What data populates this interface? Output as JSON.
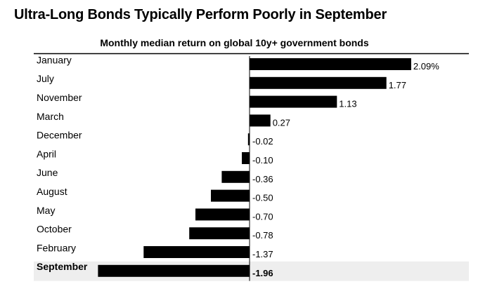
{
  "chart_data": {
    "type": "bar",
    "orientation": "horizontal",
    "title": "Ultra-Long Bonds Typically Perform Poorly in September",
    "subtitle": "Monthly median return on global 10y+ government bonds",
    "categories": [
      "January",
      "July",
      "November",
      "March",
      "December",
      "April",
      "June",
      "August",
      "May",
      "October",
      "February",
      "September"
    ],
    "values": [
      2.09,
      1.77,
      1.13,
      0.27,
      -0.02,
      -0.1,
      -0.36,
      -0.5,
      -0.7,
      -0.78,
      -1.37,
      -1.96
    ],
    "value_labels": [
      "2.09%",
      "1.77",
      "1.13",
      "0.27",
      "-0.02",
      "-0.10",
      "-0.36",
      "-0.50",
      "-0.70",
      "-0.78",
      "-1.37",
      "-1.96"
    ],
    "highlighted_category": "September",
    "bar_color": "#000000",
    "highlight_row_color": "#eeeeee",
    "xlim": [
      -2.0,
      2.09
    ],
    "grid": false
  }
}
